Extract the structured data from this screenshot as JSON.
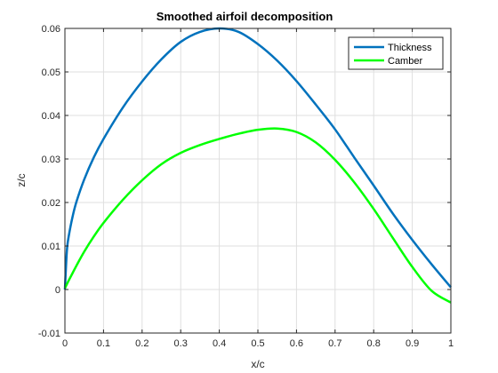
{
  "chart_data": {
    "type": "line",
    "title": "Smoothed airfoil decomposition",
    "xlabel": "x/c",
    "ylabel": "z/c",
    "xlim": [
      0,
      1
    ],
    "ylim": [
      -0.01,
      0.06
    ],
    "x_ticks": [
      0,
      0.1,
      0.2,
      0.3,
      0.4,
      0.5,
      0.6,
      0.7,
      0.8,
      0.9,
      1
    ],
    "x_tick_labels": [
      "0",
      "0.1",
      "0.2",
      "0.3",
      "0.4",
      "0.5",
      "0.6",
      "0.7",
      "0.8",
      "0.9",
      "1"
    ],
    "y_ticks": [
      -0.01,
      0,
      0.01,
      0.02,
      0.03,
      0.04,
      0.05,
      0.06
    ],
    "y_tick_labels": [
      "-0.01",
      "0",
      "0.01",
      "0.02",
      "0.03",
      "0.04",
      "0.05",
      "0.06"
    ],
    "grid": true,
    "legend_position": "top-right",
    "x": [
      0,
      0.005,
      0.01,
      0.02,
      0.03,
      0.05,
      0.075,
      0.1,
      0.15,
      0.2,
      0.25,
      0.3,
      0.35,
      0.4,
      0.45,
      0.5,
      0.55,
      0.6,
      0.65,
      0.7,
      0.75,
      0.8,
      0.85,
      0.9,
      0.95,
      1.0
    ],
    "series": [
      {
        "name": "Thickness",
        "color": "#0072BD",
        "values": [
          0,
          0.0088,
          0.0123,
          0.0168,
          0.0202,
          0.0253,
          0.0304,
          0.0346,
          0.0418,
          0.0478,
          0.0529,
          0.0569,
          0.0592,
          0.06,
          0.0592,
          0.0564,
          0.0526,
          0.0479,
          0.0425,
          0.0368,
          0.0303,
          0.0239,
          0.0174,
          0.0114,
          0.0058,
          0.0005
        ]
      },
      {
        "name": "Camber",
        "color": "#00FF00",
        "values": [
          0.0003,
          0.0012,
          0.0021,
          0.0038,
          0.0055,
          0.0087,
          0.0122,
          0.0153,
          0.0206,
          0.0251,
          0.0288,
          0.0314,
          0.0332,
          0.0346,
          0.0358,
          0.0367,
          0.037,
          0.0362,
          0.0338,
          0.0298,
          0.0246,
          0.0185,
          0.0118,
          0.0052,
          -0.0003,
          -0.003
        ]
      }
    ]
  }
}
